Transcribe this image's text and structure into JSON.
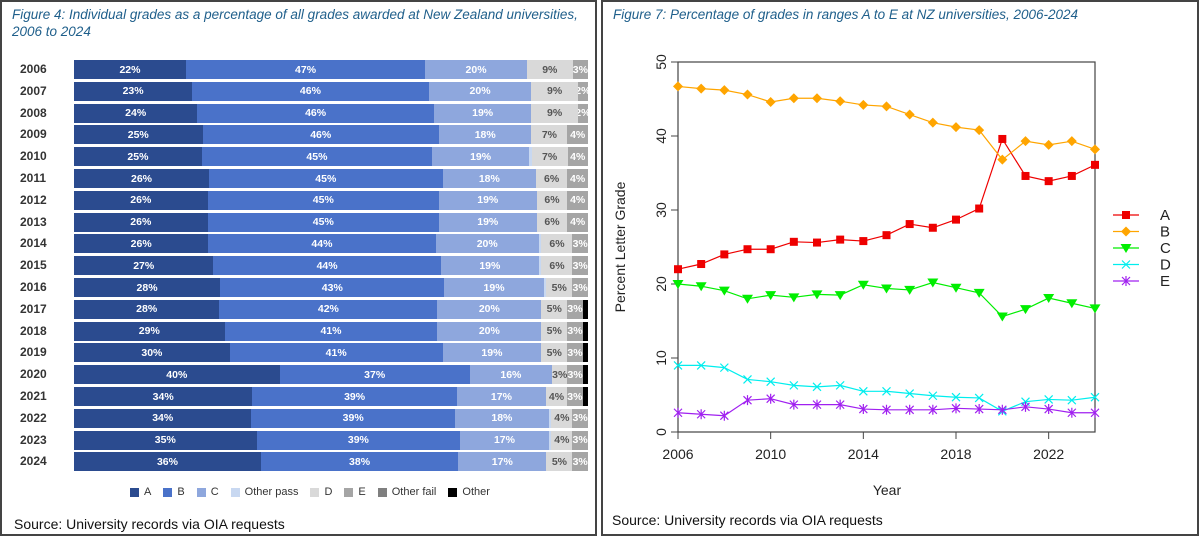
{
  "chart_data": [
    {
      "type": "bar",
      "orientation": "horizontal-stacked-100",
      "title": "Figure 4: Individual grades as a percentage of all grades awarded at New Zealand universities, 2006 to 2024",
      "categories": [
        "2006",
        "2007",
        "2008",
        "2009",
        "2010",
        "2011",
        "2012",
        "2013",
        "2014",
        "2015",
        "2016",
        "2017",
        "2018",
        "2019",
        "2020",
        "2021",
        "2022",
        "2023",
        "2024"
      ],
      "series": [
        {
          "name": "A",
          "color": "#2b4b8f",
          "labeled": true,
          "values": [
            22,
            23,
            24,
            25,
            25,
            26,
            26,
            26,
            26,
            27,
            28,
            28,
            29,
            30,
            40,
            34,
            34,
            35,
            36
          ]
        },
        {
          "name": "B",
          "color": "#4a72c9",
          "labeled": true,
          "values": [
            47,
            46,
            46,
            46,
            45,
            45,
            45,
            45,
            44,
            44,
            43,
            42,
            41,
            41,
            37,
            39,
            39,
            39,
            38
          ]
        },
        {
          "name": "C",
          "color": "#8ea7dd",
          "labeled": true,
          "values": [
            20,
            20,
            19,
            18,
            19,
            18,
            19,
            19,
            20,
            19,
            19,
            20,
            20,
            19,
            16,
            17,
            18,
            17,
            17
          ]
        },
        {
          "name": "Other pass",
          "color": "#c8d8f1",
          "labeled": false,
          "values": [
            0,
            0,
            0,
            0,
            0.5,
            0,
            0,
            0,
            0.5,
            0.5,
            0.5,
            0,
            0,
            0,
            0,
            0,
            0.5,
            0.5,
            0
          ]
        },
        {
          "name": "D",
          "color": "#d9d9d9",
          "labeled": true,
          "values": [
            9,
            9,
            9,
            7,
            7,
            6,
            6,
            6,
            6,
            6,
            5,
            5,
            5,
            5,
            3,
            4,
            4,
            4,
            5
          ]
        },
        {
          "name": "E",
          "color": "#a5a5a5",
          "labeled": true,
          "values": [
            3,
            2,
            2,
            4,
            4,
            4,
            4,
            4,
            3,
            3,
            3,
            3,
            3,
            3,
            3,
            3,
            3,
            3,
            3
          ]
        },
        {
          "name": "Other fail",
          "color": "#7f7f7f",
          "labeled": false,
          "values": [
            0,
            0,
            0,
            0,
            0,
            0,
            0,
            0,
            0,
            0,
            0,
            0,
            0,
            0,
            0,
            0,
            0,
            0,
            0
          ]
        },
        {
          "name": "Other",
          "color": "#000000",
          "labeled": false,
          "values": [
            0,
            0,
            0,
            0,
            0,
            0,
            0,
            0,
            0,
            0,
            0,
            1,
            1,
            1,
            1,
            1,
            0,
            0,
            0
          ]
        }
      ],
      "legend": "bottom",
      "source": "Source: University records via OIA requests"
    },
    {
      "type": "line",
      "title": "Figure 7: Percentage of grades in ranges A to E at NZ universities, 2006-2024",
      "xlabel": "Year",
      "ylabel": "Percent Letter Grade",
      "xlim": [
        2006,
        2024
      ],
      "ylim": [
        0,
        50
      ],
      "xticks": [
        2006,
        2010,
        2014,
        2018,
        2022
      ],
      "yticks": [
        0,
        10,
        20,
        30,
        40,
        50
      ],
      "x": [
        2006,
        2007,
        2008,
        2009,
        2010,
        2011,
        2012,
        2013,
        2014,
        2015,
        2016,
        2017,
        2018,
        2019,
        2020,
        2021,
        2022,
        2023,
        2024
      ],
      "series": [
        {
          "name": "A",
          "color": "#ee0000",
          "marker": "square",
          "values": [
            22,
            22.7,
            24,
            24.7,
            24.7,
            25.7,
            25.6,
            26,
            25.8,
            26.6,
            28.1,
            27.6,
            28.7,
            30.2,
            39.6,
            34.6,
            33.9,
            34.6,
            36.1
          ]
        },
        {
          "name": "B",
          "color": "#ffa500",
          "marker": "diamond",
          "values": [
            46.7,
            46.4,
            46.2,
            45.6,
            44.6,
            45.1,
            45.1,
            44.7,
            44.2,
            44,
            42.9,
            41.8,
            41.2,
            40.8,
            36.8,
            39.3,
            38.8,
            39.3,
            38.2
          ]
        },
        {
          "name": "C",
          "color": "#00ee00",
          "marker": "triangle-down",
          "values": [
            20,
            19.7,
            19.1,
            18,
            18.5,
            18.2,
            18.6,
            18.5,
            19.9,
            19.4,
            19.2,
            20.2,
            19.5,
            18.8,
            15.6,
            16.6,
            18.1,
            17.4,
            16.7
          ]
        },
        {
          "name": "D",
          "color": "#00eeee",
          "marker": "x",
          "values": [
            9,
            9,
            8.7,
            7.1,
            6.8,
            6.3,
            6.1,
            6.3,
            5.5,
            5.5,
            5.2,
            4.9,
            4.7,
            4.6,
            2.8,
            4.1,
            4.4,
            4.3,
            4.7
          ]
        },
        {
          "name": "E",
          "color": "#a020f0",
          "marker": "asterisk",
          "values": [
            2.6,
            2.4,
            2.2,
            4.3,
            4.5,
            3.7,
            3.7,
            3.7,
            3.1,
            3,
            3,
            3,
            3.2,
            3.1,
            3,
            3.4,
            3.1,
            2.6,
            2.6
          ]
        }
      ],
      "legend": "right",
      "source": "Source: University records via OIA requests"
    }
  ]
}
